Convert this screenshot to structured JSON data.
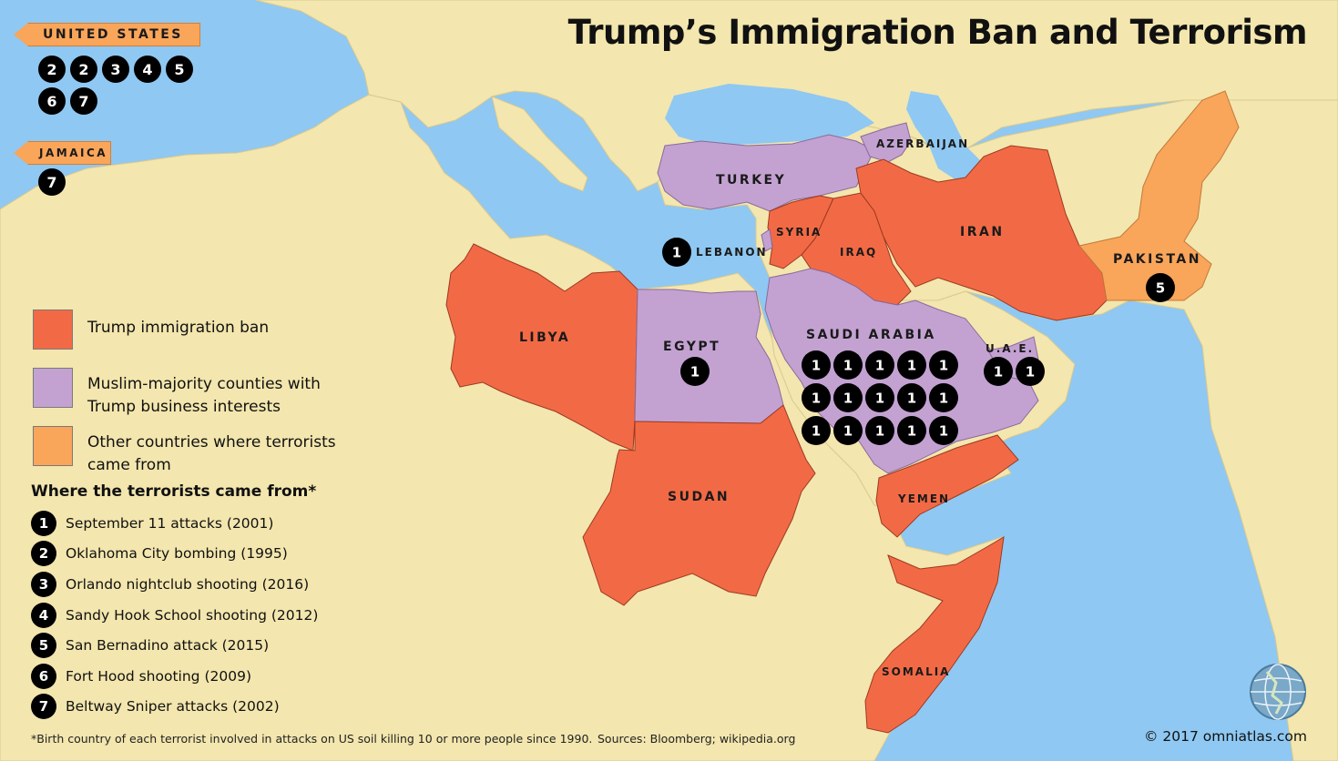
{
  "title": "Trump’s Immigration Ban and Terrorism",
  "colors": {
    "sea": "#8fc8f2",
    "land": "#f3e6ae",
    "ban": "#f26a45",
    "business": "#c3a2d2",
    "other": "#f9a55a",
    "marker": "#000000"
  },
  "external_tags": [
    {
      "label": "UNITED STATES",
      "attacks": [
        "2",
        "2",
        "3",
        "4",
        "5",
        "6",
        "7"
      ]
    },
    {
      "label": "JAMAICA",
      "attacks": [
        "7"
      ]
    }
  ],
  "countries": [
    {
      "name": "TURKEY",
      "category": "business"
    },
    {
      "name": "AZERBAIJAN",
      "category": "business"
    },
    {
      "name": "SYRIA",
      "category": "ban"
    },
    {
      "name": "IRAQ",
      "category": "ban"
    },
    {
      "name": "IRAN",
      "category": "ban"
    },
    {
      "name": "LEBANON",
      "category": "business",
      "attacks": [
        "1"
      ]
    },
    {
      "name": "PAKISTAN",
      "category": "other",
      "attacks": [
        "5"
      ]
    },
    {
      "name": "LIBYA",
      "category": "ban"
    },
    {
      "name": "EGYPT",
      "category": "business",
      "attacks": [
        "1"
      ]
    },
    {
      "name": "SAUDI ARABIA",
      "category": "business",
      "attacks": [
        "1",
        "1",
        "1",
        "1",
        "1",
        "1",
        "1",
        "1",
        "1",
        "1",
        "1",
        "1",
        "1",
        "1",
        "1"
      ]
    },
    {
      "name": "U.A.E.",
      "category": "business",
      "attacks": [
        "1",
        "1"
      ]
    },
    {
      "name": "SUDAN",
      "category": "ban"
    },
    {
      "name": "YEMEN",
      "category": "ban"
    },
    {
      "name": "SOMALIA",
      "category": "ban"
    }
  ],
  "legend": [
    {
      "label": "Trump immigration ban",
      "color": "#f26a45"
    },
    {
      "label": "Muslim-majority counties with\nTrump business interests",
      "color": "#c3a2d2"
    },
    {
      "label": "Other countries where terrorists\ncame from",
      "color": "#f9a55a"
    }
  ],
  "attacks_title": "Where the terrorists came from*",
  "attacks": [
    {
      "num": "1",
      "label": "September 11 attacks (2001)"
    },
    {
      "num": "2",
      "label": "Oklahoma City bombing (1995)"
    },
    {
      "num": "3",
      "label": "Orlando nightclub shooting (2016)"
    },
    {
      "num": "4",
      "label": "Sandy Hook School shooting (2012)"
    },
    {
      "num": "5",
      "label": "San Bernadino attack (2015)"
    },
    {
      "num": "6",
      "label": "Fort Hood shooting (2009)"
    },
    {
      "num": "7",
      "label": "Beltway Sniper attacks (2002)"
    }
  ],
  "footnote": "*Birth country of each terrorist involved in attacks on US soil killing 10 or more people since 1990.",
  "sources": "Sources: Bloomberg; wikipedia.org",
  "copyright": "© 2017 omniatlas.com"
}
